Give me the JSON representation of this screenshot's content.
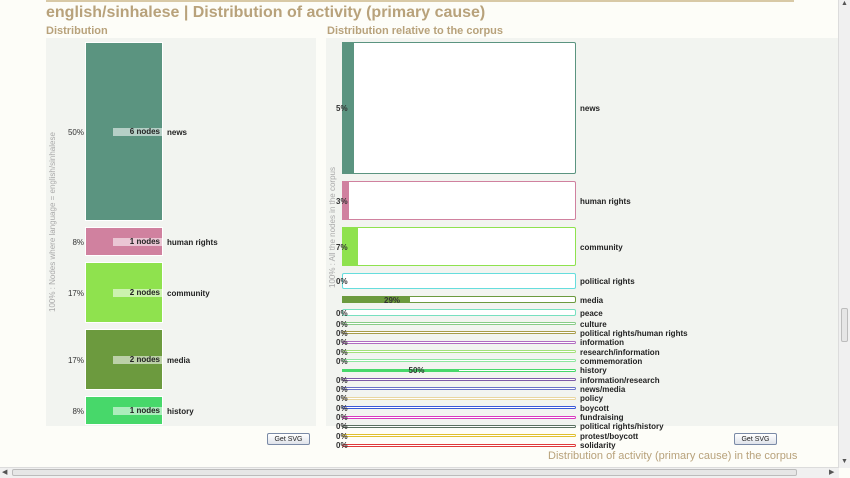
{
  "header": {
    "title": "english/sinhalese  |  Distribution of activity (primary cause)",
    "left_subtitle": "Distribution",
    "right_subtitle": "Distribution relative to the corpus",
    "left_axis_label": "100% : Nodes where language = english/sinhalese",
    "right_axis_label": "100% : All the nodes in the corpus",
    "get_svg_label": "Get SVG",
    "footer_caption": "Distribution of activity (primary cause) in the corpus"
  },
  "chart_data": [
    {
      "type": "bar",
      "title": "Distribution",
      "categories": [
        "news",
        "human rights",
        "community",
        "media",
        "history"
      ],
      "values_percent": [
        50,
        8,
        17,
        17,
        8
      ],
      "pct_labels": [
        "50%",
        "8%",
        "17%",
        "17%",
        "8%"
      ],
      "nodes": [
        6,
        1,
        2,
        2,
        1
      ],
      "node_labels": [
        "6 nodes",
        "1 nodes",
        "2 nodes",
        "2 nodes",
        "1 nodes"
      ],
      "colors": [
        "#5b9480",
        "#d0819f",
        "#8fe24e",
        "#6c9a3e",
        "#47d86a"
      ]
    },
    {
      "type": "bar",
      "title": "Distribution relative to the corpus",
      "items": [
        {
          "name": "news",
          "pct": 5,
          "label": "5%",
          "color": "#5b9480",
          "size": "large"
        },
        {
          "name": "human rights",
          "pct": 3,
          "label": "3%",
          "color": "#d0819f",
          "size": "medium"
        },
        {
          "name": "community",
          "pct": 7,
          "label": "7%",
          "color": "#8fe24e",
          "size": "medium"
        },
        {
          "name": "political rights",
          "pct": 0,
          "label": "0%",
          "color": "#66dddd",
          "size": "small"
        },
        {
          "name": "media",
          "pct": 29,
          "label": "29%",
          "color": "#6c9a3e",
          "size": "thin"
        },
        {
          "name": "peace",
          "pct": 0,
          "label": "0%",
          "color": "#77e0c0",
          "size": "thin"
        },
        {
          "name": "culture",
          "pct": 0,
          "label": "0%",
          "color": "#88cc88",
          "size": "line"
        },
        {
          "name": "political rights/human rights",
          "pct": 0,
          "label": "0%",
          "color": "#a89c4a",
          "size": "line"
        },
        {
          "name": "information",
          "pct": 0,
          "label": "0%",
          "color": "#b06cc0",
          "size": "line"
        },
        {
          "name": "research/information",
          "pct": 0,
          "label": "0%",
          "color": "#a3e07a",
          "size": "line"
        },
        {
          "name": "commemoration",
          "pct": 0,
          "label": "0%",
          "color": "#8ee6a0",
          "size": "line"
        },
        {
          "name": "history",
          "pct": 50,
          "label": "50%",
          "color": "#47d86a",
          "size": "line"
        },
        {
          "name": "information/research",
          "pct": 0,
          "label": "0%",
          "color": "#7e5aa8",
          "size": "line"
        },
        {
          "name": "news/media",
          "pct": 0,
          "label": "0%",
          "color": "#6a72c8",
          "size": "line"
        },
        {
          "name": "policy",
          "pct": 0,
          "label": "0%",
          "color": "#e8d6a0",
          "size": "line"
        },
        {
          "name": "boycott",
          "pct": 0,
          "label": "0%",
          "color": "#3a58d8",
          "size": "line"
        },
        {
          "name": "fundraising",
          "pct": 0,
          "label": "0%",
          "color": "#d83ac0",
          "size": "line"
        },
        {
          "name": "political rights/history",
          "pct": 0,
          "label": "0%",
          "color": "#5a7060",
          "size": "line"
        },
        {
          "name": "protest/boycott",
          "pct": 0,
          "label": "0%",
          "color": "#e0c030",
          "size": "line"
        },
        {
          "name": "solidarity",
          "pct": 0,
          "label": "0%",
          "color": "#e03a3a",
          "size": "line"
        }
      ]
    }
  ]
}
